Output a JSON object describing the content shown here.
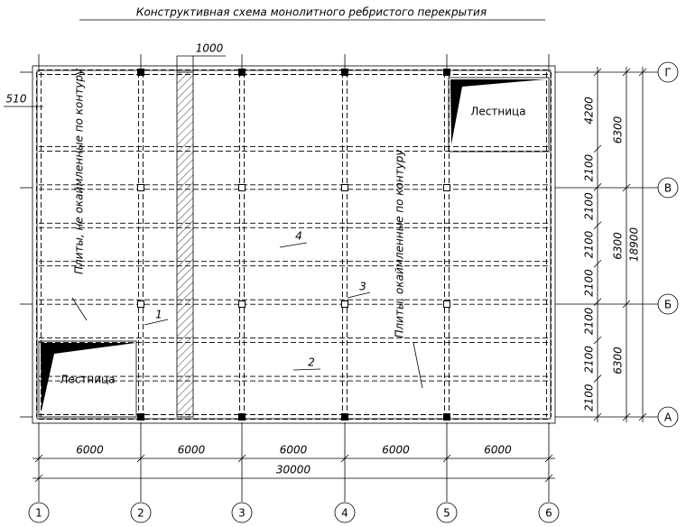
{
  "title": "Конструктивная схема монолитного ребристого перекрытия",
  "dimensions": {
    "strip_width": "1000",
    "wall_offset": "510",
    "bottom_spans": [
      "6000",
      "6000",
      "6000",
      "6000",
      "6000"
    ],
    "bottom_total": "30000",
    "right_spans": [
      "4200",
      "2100",
      "2100",
      "2100",
      "2100",
      "2100",
      "2100",
      "2100"
    ],
    "right_groups": [
      "6300",
      "6300",
      "6300"
    ],
    "right_total": "18900"
  },
  "labels": {
    "unframed_slabs": "Плиты, не окаймленные по контуру",
    "framed_slabs": "Плиты, окаймленные по контуру",
    "stairs": [
      "Лестница",
      "Лестница"
    ],
    "marks": [
      "1",
      "2",
      "3",
      "4"
    ]
  },
  "axes": {
    "letters": [
      "Г",
      "В",
      "Б",
      "А"
    ],
    "numbers": [
      "1",
      "2",
      "3",
      "4",
      "5",
      "6"
    ]
  }
}
